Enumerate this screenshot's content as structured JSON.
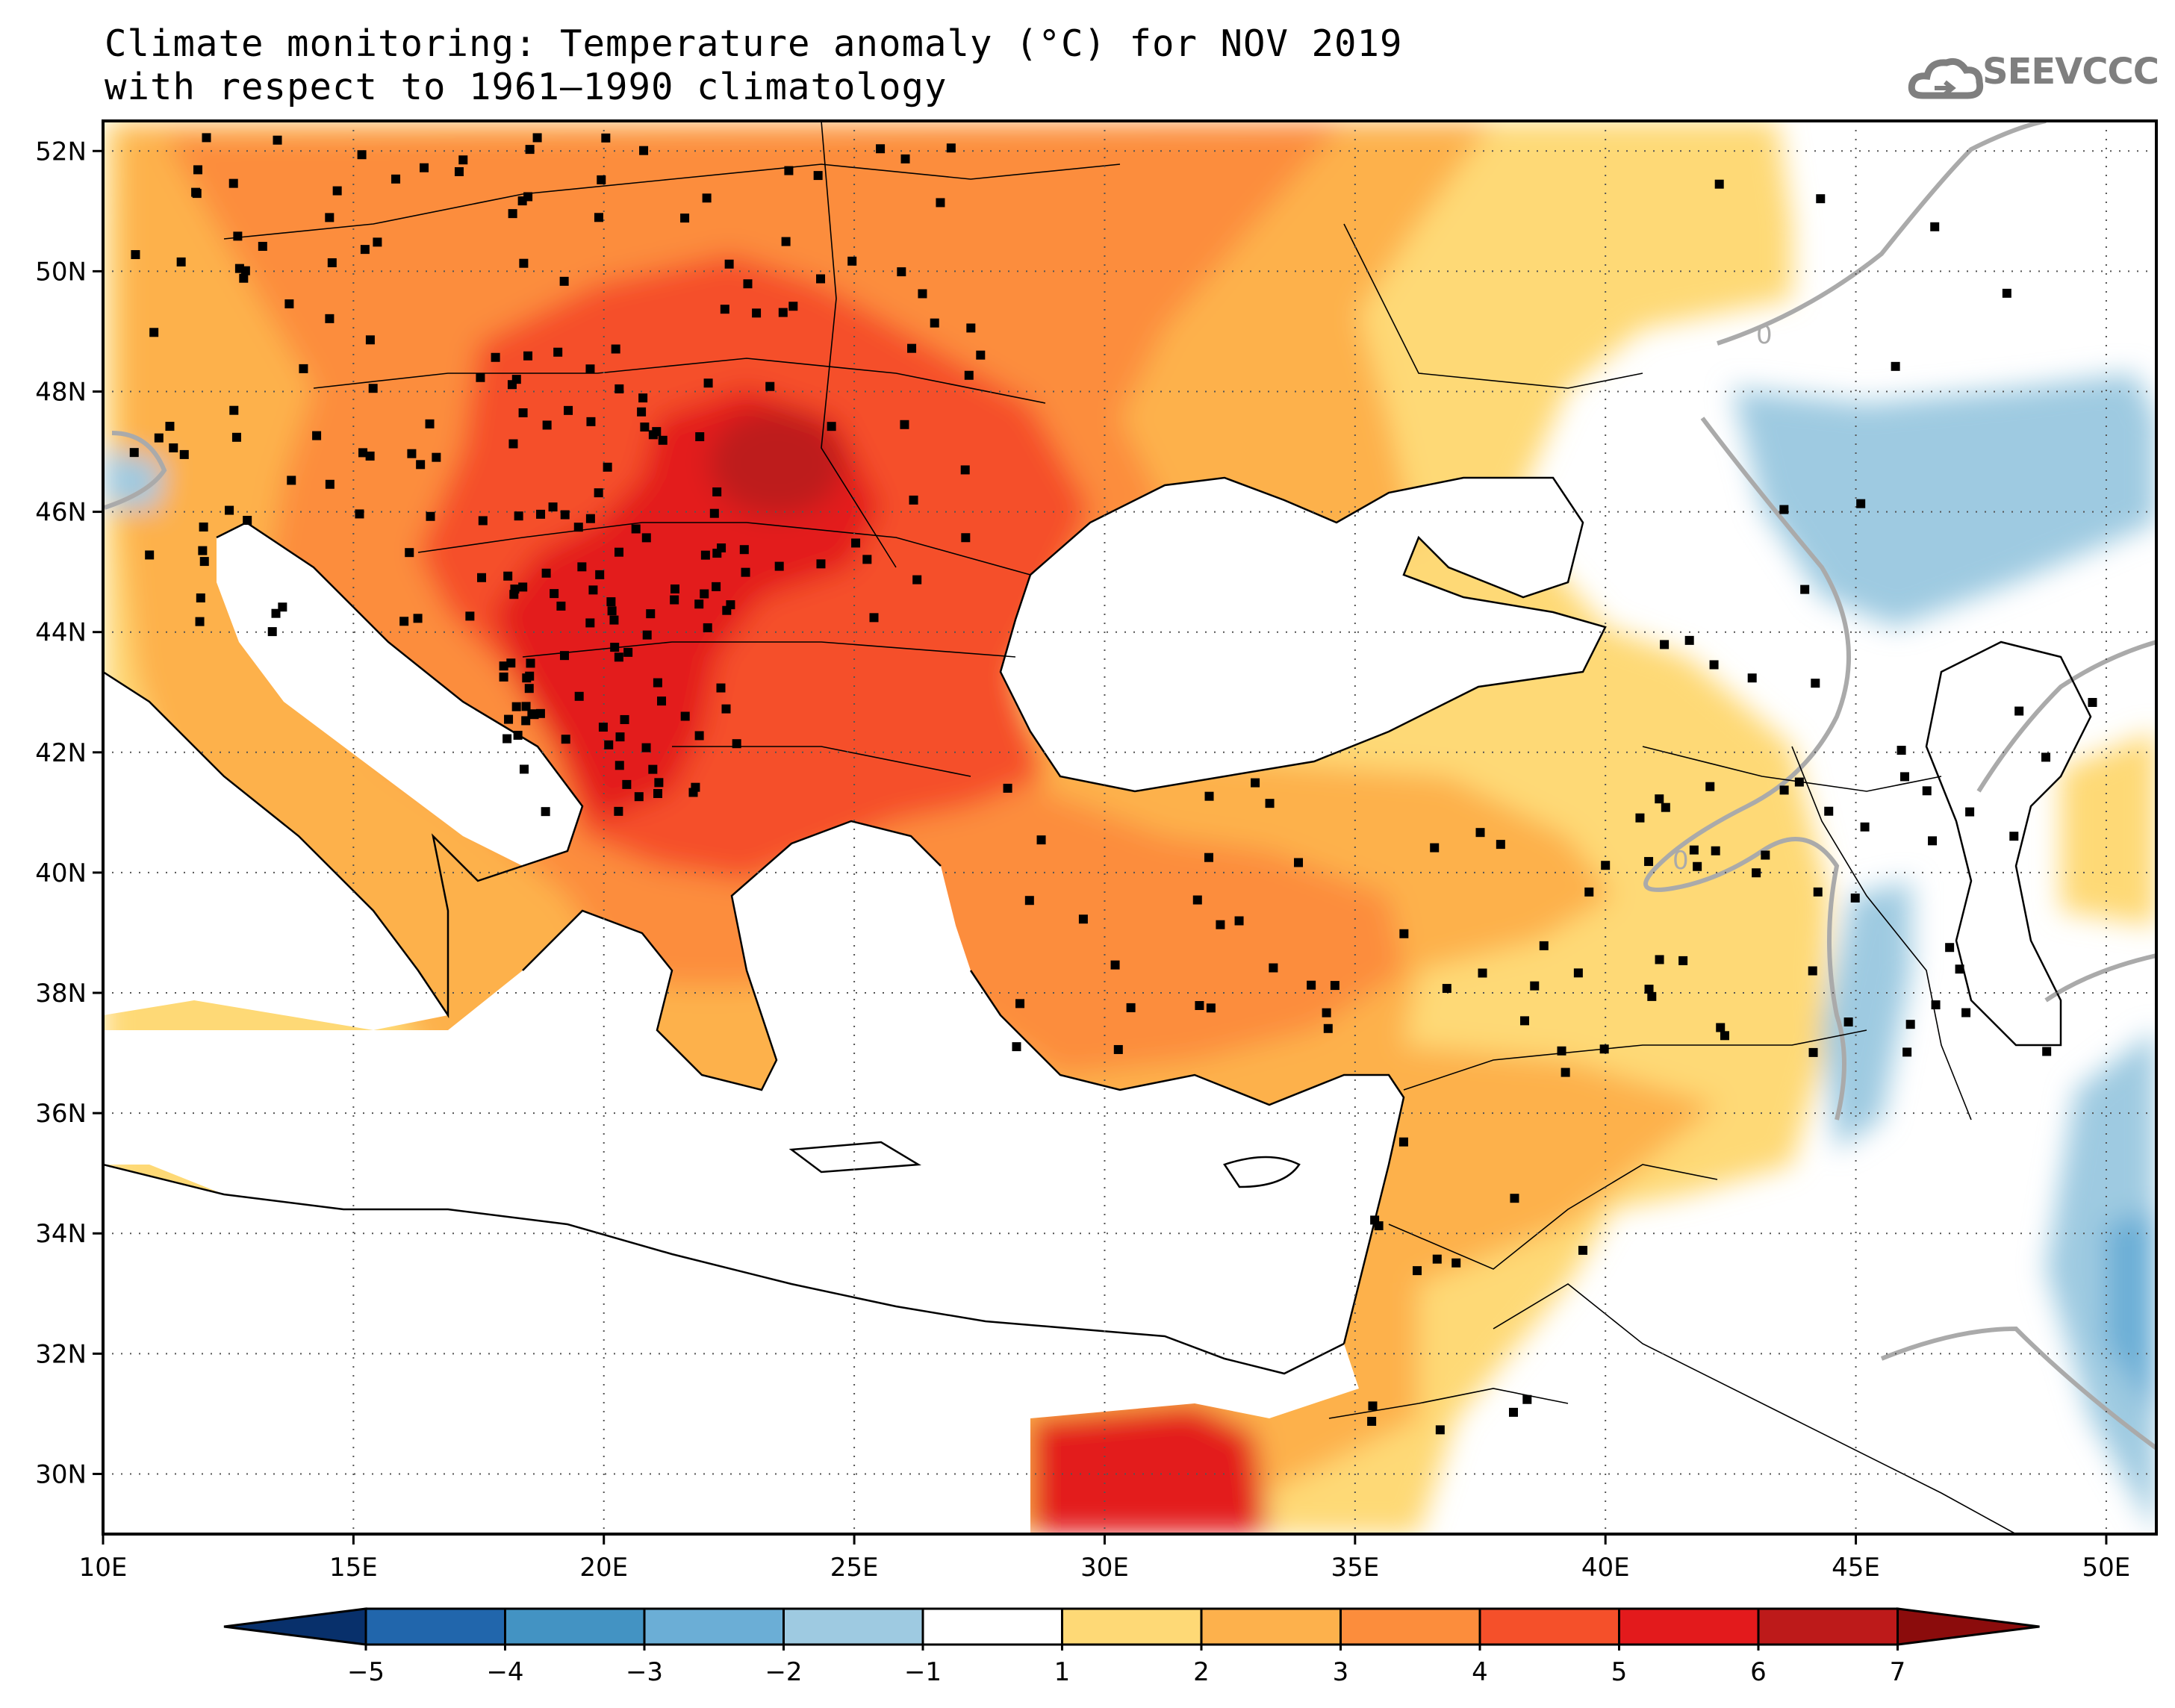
{
  "title": {
    "line1": "Climate monitoring: Temperature anomaly (°C) for NOV 2019",
    "line2": "with respect to 1961–1990 climatology"
  },
  "logo": {
    "text": "SEEVCCC",
    "icon": "cloud-icon",
    "color": "#7f7f7f"
  },
  "map": {
    "lon_range": [
      10,
      51
    ],
    "lat_range": [
      29,
      52.5
    ],
    "lat_ticks": [
      "52N",
      "50N",
      "48N",
      "46N",
      "44N",
      "42N",
      "40N",
      "38N",
      "36N",
      "34N",
      "32N",
      "30N"
    ],
    "lat_tick_values": [
      52,
      50,
      48,
      46,
      44,
      42,
      40,
      38,
      36,
      34,
      32,
      30
    ],
    "lon_ticks": [
      "10E",
      "15E",
      "20E",
      "25E",
      "30E",
      "35E",
      "40E",
      "45E",
      "50E"
    ],
    "lon_tick_values": [
      10,
      15,
      20,
      25,
      30,
      35,
      40,
      45,
      50
    ],
    "contour_labels": [
      "0",
      "0"
    ],
    "grid": "dotted"
  },
  "colorbar": {
    "labels": [
      "−5",
      "−4",
      "−3",
      "−2",
      "−1",
      "1",
      "2",
      "3",
      "4",
      "5",
      "6",
      "7"
    ],
    "colors": [
      "#08306b",
      "#2166ac",
      "#4393c3",
      "#6baed6",
      "#9ecae1",
      "#ffffff",
      "#fed976",
      "#fdb14c",
      "#fc8d3c",
      "#f5502a",
      "#e31a1c",
      "#bd1a1a",
      "#8b0c0c"
    ],
    "unit": "°C"
  }
}
